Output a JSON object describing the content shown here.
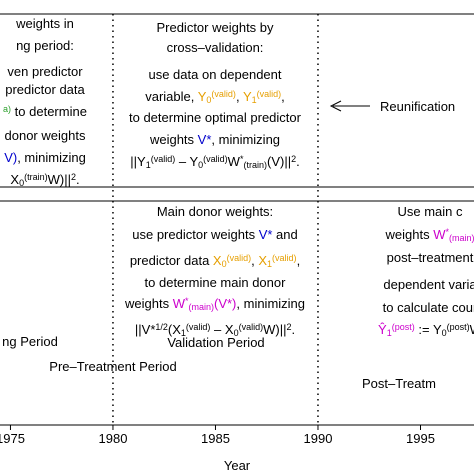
{
  "blocks": [
    {
      "name": "left-top",
      "lines": [
        [
          {
            "t": "weights in"
          }
        ],
        [
          {
            "t": "ng period:"
          }
        ],
        [
          {
            "t": "ven predictor"
          }
        ],
        [
          {
            "t": "predictor data"
          }
        ],
        [
          {
            "t": "a)",
            "c": "#2ca02c",
            "s": "sup"
          },
          {
            "t": " to determine"
          }
        ],
        [
          {
            "t": "donor weights"
          }
        ],
        [
          {
            "t": "V)",
            "c": "#0000cc"
          },
          {
            "t": ", minimizing"
          }
        ],
        [
          {
            "t": "X"
          },
          {
            "t": "0",
            "s": "sub"
          },
          {
            "t": "(train)",
            "s": "sup"
          },
          {
            "t": "W)||"
          },
          {
            "t": "2",
            "s": "sup"
          },
          {
            "t": "."
          }
        ]
      ]
    },
    {
      "name": "middle-top",
      "lines": [
        [
          {
            "t": "Predictor weights by"
          }
        ],
        [
          {
            "t": "cross–validation:"
          }
        ],
        [
          {
            "t": "use data on dependent"
          }
        ],
        [
          {
            "t": "variable, "
          },
          {
            "t": "Y",
            "c": "#e69f00"
          },
          {
            "t": "0",
            "c": "#e69f00",
            "s": "sub"
          },
          {
            "t": "(valid)",
            "c": "#e69f00",
            "s": "sup"
          },
          {
            "t": ", "
          },
          {
            "t": "Y",
            "c": "#e69f00"
          },
          {
            "t": "1",
            "c": "#e69f00",
            "s": "sub"
          },
          {
            "t": "(valid)",
            "c": "#e69f00",
            "s": "sup"
          },
          {
            "t": ","
          }
        ],
        [
          {
            "t": "to determine optimal predictor"
          }
        ],
        [
          {
            "t": "weights "
          },
          {
            "t": "V*",
            "c": "#0000cc"
          },
          {
            "t": ", minimizing"
          }
        ],
        [
          {
            "t": "||Y"
          },
          {
            "t": "1",
            "s": "sub"
          },
          {
            "t": "(valid)",
            "s": "sup"
          },
          {
            "t": " – Y"
          },
          {
            "t": "0",
            "s": "sub"
          },
          {
            "t": "(valid)",
            "s": "sup"
          },
          {
            "t": "W"
          },
          {
            "t": "*",
            "s": "sup"
          },
          {
            "t": "(train)",
            "s": "sub"
          },
          {
            "t": "(V)||"
          },
          {
            "t": "2",
            "s": "sup"
          },
          {
            "t": "."
          }
        ]
      ]
    },
    {
      "name": "middle-bottom",
      "lines": [
        [
          {
            "t": "Main donor weights:"
          }
        ],
        [
          {
            "t": "use predictor weights "
          },
          {
            "t": "V*",
            "c": "#0000cc"
          },
          {
            "t": " and"
          }
        ],
        [
          {
            "t": "predictor data "
          },
          {
            "t": "X",
            "c": "#e69f00"
          },
          {
            "t": "0",
            "c": "#e69f00",
            "s": "sub"
          },
          {
            "t": "(valid)",
            "c": "#e69f00",
            "s": "sup"
          },
          {
            "t": ", "
          },
          {
            "t": "X",
            "c": "#e69f00"
          },
          {
            "t": "1",
            "c": "#e69f00",
            "s": "sub"
          },
          {
            "t": "(valid)",
            "c": "#e69f00",
            "s": "sup"
          },
          {
            "t": ","
          }
        ],
        [
          {
            "t": "to determine main donor"
          }
        ],
        [
          {
            "t": "weights "
          },
          {
            "t": "W",
            "c": "#cc00cc"
          },
          {
            "t": "*",
            "c": "#cc00cc",
            "s": "sup"
          },
          {
            "t": "(main)",
            "c": "#cc00cc",
            "s": "sub"
          },
          {
            "t": "(V*)",
            "c": "#cc00cc"
          },
          {
            "t": ", minimizing"
          }
        ],
        [
          {
            "t": "||V*"
          },
          {
            "t": "1/2",
            "s": "sup"
          },
          {
            "t": "(X"
          },
          {
            "t": "1",
            "s": "sub"
          },
          {
            "t": "(valid)",
            "s": "sup"
          },
          {
            "t": " – X"
          },
          {
            "t": "0",
            "s": "sub"
          },
          {
            "t": "(valid)",
            "s": "sup"
          },
          {
            "t": "W)||"
          },
          {
            "t": "2",
            "s": "sup"
          },
          {
            "t": "."
          }
        ]
      ]
    },
    {
      "name": "right-bottom",
      "lines": [
        [
          {
            "t": "Use main c"
          }
        ],
        [
          {
            "t": "weights "
          },
          {
            "t": "W",
            "c": "#cc00cc"
          },
          {
            "t": "*",
            "c": "#cc00cc",
            "s": "sup"
          },
          {
            "t": "(main)",
            "c": "#cc00cc",
            "s": "sub"
          }
        ],
        [
          {
            "t": "post–treatment"
          }
        ],
        [
          {
            "t": "dependent varia"
          }
        ],
        [
          {
            "t": "to calculate cour"
          }
        ],
        [
          {
            "t": "Ŷ",
            "c": "#cc00cc"
          },
          {
            "t": "1",
            "c": "#cc00cc",
            "s": "sub"
          },
          {
            "t": "(post)",
            "c": "#cc00cc",
            "s": "sup"
          },
          {
            "t": " := Y"
          },
          {
            "t": "0",
            "s": "sub"
          },
          {
            "t": "(post)",
            "s": "sup"
          },
          {
            "t": "W"
          }
        ]
      ]
    }
  ],
  "annotation": "Reunification",
  "periods": [
    {
      "label": "ng Period",
      "color": "#2ca02c"
    },
    {
      "label": "Validation Period",
      "color": "#e69f00"
    },
    {
      "label": "Pre–Treatment Period",
      "color": "#8b4513"
    },
    {
      "label": "Post–Treatm",
      "color": "#e41a1c"
    }
  ],
  "axis": {
    "label": "Year",
    "xlim": [
      1974.49,
      1997.61
    ],
    "ticks": [
      1975,
      1980,
      1985,
      1990,
      1995
    ],
    "dividers": [
      1980,
      1990
    ]
  }
}
